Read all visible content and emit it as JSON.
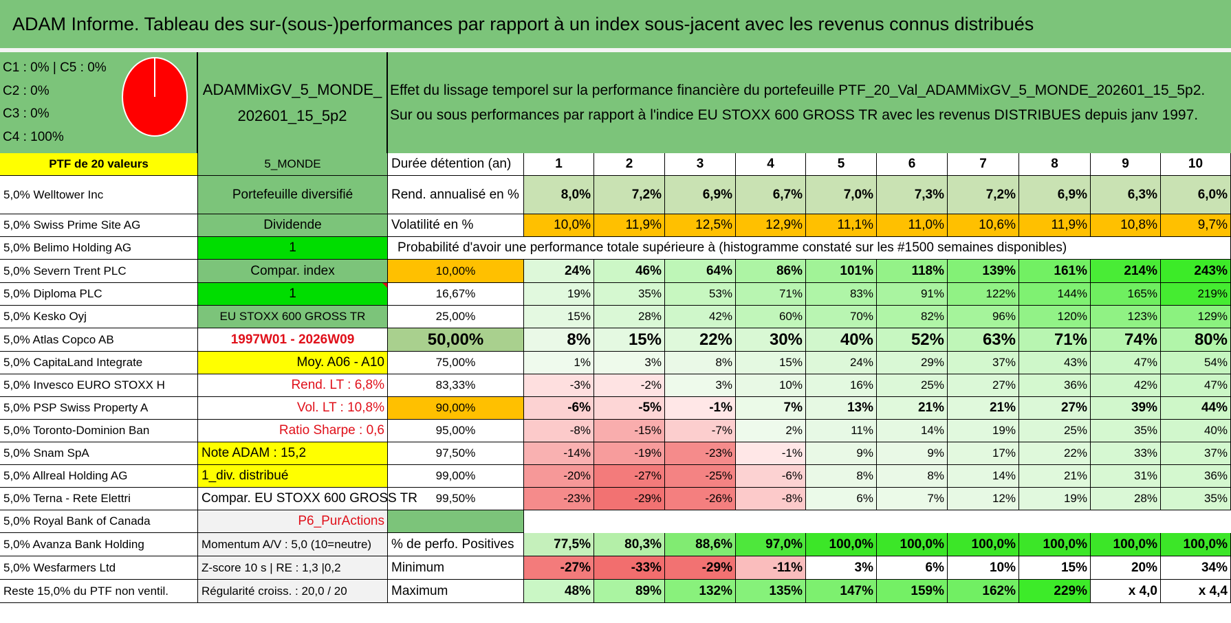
{
  "title": "ADAM Informe. Tableau des sur-(sous-)performances par rapport à un index sous-jacent avec les revenus connus distribués",
  "composition": [
    "C1 : 0% | C5 : 0%",
    "C2 : 0%",
    "C3 : 0%",
    "C4 : 100%"
  ],
  "pie": {
    "color": "#ff0000",
    "share_c4": 100
  },
  "portfolio_name": "ADAMMixGV_5_MONDE_202601_15_5p2",
  "description": [
    "Effet du lissage temporel sur la performance financière du portefeuille PTF_20_Val_ADAMMixGV_5_MONDE_202601_15_5p2.",
    "Sur ou sous performances par rapport à l'indice EU STOXX 600 GROSS TR avec les revenus DISTRIBUES depuis janv 1997."
  ],
  "ptf_header": "PTF de 20 valeurs",
  "zone": "5_MONDE",
  "duration_label": "Durée détention (an)",
  "years": [
    "1",
    "2",
    "3",
    "4",
    "5",
    "6",
    "7",
    "8",
    "9",
    "10"
  ],
  "holdings": [
    "5,0% Welltower Inc",
    "5,0% Swiss Prime Site AG",
    "5,0% Belimo Holding AG",
    "5,0% Severn Trent PLC",
    "5,0% Diploma PLC",
    "5,0% Kesko Oyj",
    "5,0% Atlas Copco AB",
    "5,0% CapitaLand Integrate",
    "5,0% Invesco EURO STOXX H",
    "5,0% PSP Swiss Property A",
    "5,0% Toronto-Dominion Ban",
    "5,0% Snam SpA",
    "5,0% Allreal Holding AG",
    "5,0% Terna - Rete Elettri",
    "5,0% Royal Bank of Canada",
    "5,0% Avanza Bank Holding",
    "5,0% Wesfarmers Ltd",
    "Reste 15,0% du PTF non ventil."
  ],
  "info": [
    "Portefeuille diversifié",
    "Dividende",
    "1",
    "Compar. index",
    "1",
    "EU STOXX 600 GROSS TR",
    "1997W01 - 2026W09",
    "Moy. A06 - A10",
    "Rend. LT : 6,8%",
    "Vol. LT : 10,8%",
    "Ratio Sharpe : 0,6",
    "Note ADAM : 15,2",
    "1_div. distribué",
    "Compar. EU STOXX 600 GROSS TR",
    "P6_PurActions",
    "Momentum A/V : 5,0 (10=neutre)",
    "Z-score 10 s | RE : 1,3 |0,2",
    "Régularité croiss. : 20,0 / 20"
  ],
  "return_row": {
    "label": "Rend. annualisé en %",
    "values": [
      "8,0%",
      "7,2%",
      "6,9%",
      "6,7%",
      "7,0%",
      "7,3%",
      "7,2%",
      "6,9%",
      "6,3%",
      "6,0%"
    ]
  },
  "vol_row": {
    "label": "Volatilité en %",
    "values": [
      "10,0%",
      "11,9%",
      "12,5%",
      "12,9%",
      "11,1%",
      "11,0%",
      "10,6%",
      "11,9%",
      "10,8%",
      "9,7%"
    ]
  },
  "prob_header": "Probabilité d'avoir une performance totale supérieure à (histogramme constaté sur les #1500 semaines disponibles)",
  "prob_rows": [
    {
      "p": "10,00%",
      "values": [
        "24%",
        "46%",
        "64%",
        "86%",
        "101%",
        "118%",
        "139%",
        "161%",
        "214%",
        "243%"
      ]
    },
    {
      "p": "16,67%",
      "values": [
        "19%",
        "35%",
        "53%",
        "71%",
        "83%",
        "91%",
        "122%",
        "144%",
        "165%",
        "219%"
      ]
    },
    {
      "p": "25,00%",
      "values": [
        "15%",
        "28%",
        "42%",
        "60%",
        "70%",
        "82%",
        "96%",
        "120%",
        "123%",
        "129%"
      ]
    },
    {
      "p": "50,00%",
      "values": [
        "8%",
        "15%",
        "22%",
        "30%",
        "40%",
        "52%",
        "63%",
        "71%",
        "74%",
        "80%"
      ]
    },
    {
      "p": "75,00%",
      "values": [
        "1%",
        "3%",
        "8%",
        "15%",
        "24%",
        "29%",
        "37%",
        "43%",
        "47%",
        "54%"
      ]
    },
    {
      "p": "83,33%",
      "values": [
        "-3%",
        "-2%",
        "3%",
        "10%",
        "16%",
        "25%",
        "27%",
        "36%",
        "42%",
        "47%"
      ]
    },
    {
      "p": "90,00%",
      "values": [
        "-6%",
        "-5%",
        "-1%",
        "7%",
        "13%",
        "21%",
        "21%",
        "27%",
        "39%",
        "44%"
      ]
    },
    {
      "p": "95,00%",
      "values": [
        "-8%",
        "-15%",
        "-7%",
        "2%",
        "11%",
        "14%",
        "19%",
        "25%",
        "35%",
        "40%"
      ]
    },
    {
      "p": "97,50%",
      "values": [
        "-14%",
        "-19%",
        "-23%",
        "-1%",
        "9%",
        "9%",
        "17%",
        "22%",
        "33%",
        "37%"
      ]
    },
    {
      "p": "99,00%",
      "values": [
        "-20%",
        "-27%",
        "-25%",
        "-6%",
        "8%",
        "8%",
        "14%",
        "21%",
        "31%",
        "36%"
      ]
    },
    {
      "p": "99,50%",
      "values": [
        "-23%",
        "-29%",
        "-26%",
        "-8%",
        "6%",
        "7%",
        "12%",
        "19%",
        "28%",
        "35%"
      ]
    }
  ],
  "pos_row": {
    "label": "% de perfo. Positives",
    "values": [
      "77,5%",
      "80,3%",
      "88,6%",
      "97,0%",
      "100,0%",
      "100,0%",
      "100,0%",
      "100,0%",
      "100,0%",
      "100,0%"
    ]
  },
  "min_row": {
    "label": "Minimum",
    "values": [
      "-27%",
      "-33%",
      "-29%",
      "-11%",
      "3%",
      "6%",
      "10%",
      "15%",
      "20%",
      "34%"
    ]
  },
  "max_row": {
    "label": "Maximum",
    "values": [
      "48%",
      "89%",
      "132%",
      "135%",
      "147%",
      "159%",
      "162%",
      "229%",
      "x 4,0",
      "x 4,4"
    ]
  },
  "colors": {
    "green_header": "#7cc47a",
    "yellow": "#ffff00",
    "orange": "#ffc000",
    "bright_green": "#00dd00",
    "dark_red_text": "#e0101a"
  }
}
